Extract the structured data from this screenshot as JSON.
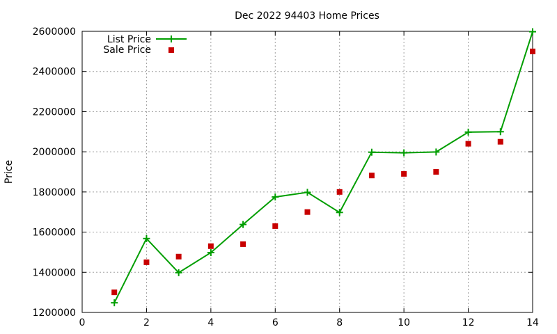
{
  "chart_data": {
    "type": "line",
    "title": "Dec 2022 94403 Home Prices",
    "xlabel": "",
    "ylabel": "Price",
    "xlim": [
      0,
      14
    ],
    "ylim": [
      1200000,
      2600000
    ],
    "xticks": [
      0,
      2,
      4,
      6,
      8,
      10,
      12,
      14
    ],
    "yticks": [
      1200000,
      1400000,
      1600000,
      1800000,
      2000000,
      2200000,
      2400000,
      2600000
    ],
    "grid": true,
    "legend_position": "top-left",
    "x": [
      1,
      2,
      3,
      4,
      5,
      6,
      7,
      8,
      9,
      10,
      11,
      12,
      13,
      14
    ],
    "series": [
      {
        "name": "List Price",
        "style": "line-points",
        "marker": "plus",
        "color": "#009e00",
        "values": [
          1248000,
          1568000,
          1398000,
          1498000,
          1638000,
          1775000,
          1798000,
          1698000,
          1998000,
          1995000,
          1999000,
          2098000,
          2100000,
          2598000
        ]
      },
      {
        "name": "Sale Price",
        "style": "points",
        "marker": "square",
        "color": "#c80000",
        "values": [
          1300000,
          1450000,
          1478000,
          1530000,
          1540000,
          1630000,
          1700000,
          1800000,
          1882000,
          1890000,
          1900000,
          2040000,
          2050000,
          2500000
        ]
      }
    ]
  }
}
